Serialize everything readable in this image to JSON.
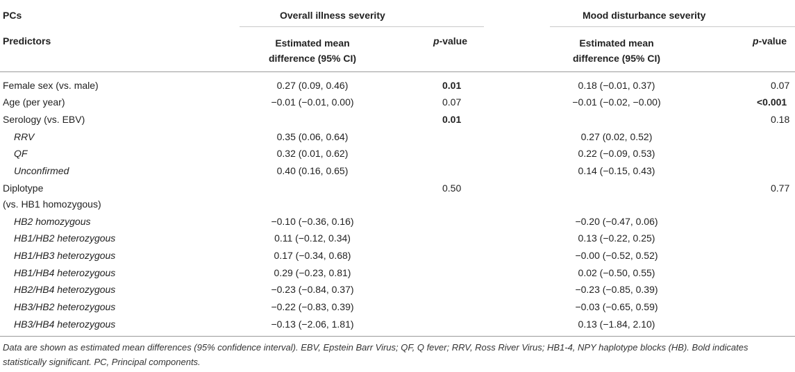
{
  "header": {
    "pcs_label": "PCs",
    "predictors_label": "Predictors",
    "group1": "Overall illness severity",
    "group2": "Mood disturbance severity",
    "est_line1": "Estimated mean",
    "est_line2": "difference (95% CI)",
    "p_italic": "p",
    "p_rest": "-value"
  },
  "rows": [
    {
      "label": "Female sex (vs. male)",
      "est1": "0.27 (0.09, 0.46)",
      "p1": "0.01",
      "est2": "0.18 (−0.01, 0.37)",
      "p2": "0.07"
    },
    {
      "label": "Age (per year)",
      "est1": "−0.01 (−0.01, 0.00)",
      "p1": "0.07",
      "est2": "−0.01 (−0.02, −0.00)",
      "p2": "<0.001"
    },
    {
      "label": "Serology (vs. EBV)",
      "est1": "",
      "p1": "0.01",
      "est2": "",
      "p2": "0.18"
    },
    {
      "label": "RRV",
      "est1": "0.35 (0.06, 0.64)",
      "p1": "",
      "est2": "0.27 (0.02, 0.52)",
      "p2": ""
    },
    {
      "label": "QF",
      "est1": "0.32 (0.01, 0.62)",
      "p1": "",
      "est2": "0.22 (−0.09, 0.53)",
      "p2": ""
    },
    {
      "label": "Unconfirmed",
      "est1": "0.40 (0.16, 0.65)",
      "p1": "",
      "est2": "0.14 (−0.15, 0.43)",
      "p2": ""
    },
    {
      "label": "Diplotype",
      "label2": "(vs. HB1 homozygous)",
      "est1": "",
      "p1": "0.50",
      "est2": "",
      "p2": "0.77"
    },
    {
      "label": "HB2 homozygous",
      "est1": "−0.10 (−0.36, 0.16)",
      "p1": "",
      "est2": "−0.20 (−0.47, 0.06)",
      "p2": ""
    },
    {
      "label": "HB1/HB2 heterozygous",
      "est1": "0.11 (−0.12, 0.34)",
      "p1": "",
      "est2": "0.13 (−0.22, 0.25)",
      "p2": ""
    },
    {
      "label": "HB1/HB3 heterozygous",
      "est1": "0.17 (−0.34, 0.68)",
      "p1": "",
      "est2": "−0.00 (−0.52, 0.52)",
      "p2": ""
    },
    {
      "label": "HB1/HB4 heterozygous",
      "est1": "0.29 (−0.23, 0.81)",
      "p1": "",
      "est2": "0.02 (−0.50, 0.55)",
      "p2": ""
    },
    {
      "label": "HB2/HB4 heterozygous",
      "est1": "−0.23 (−0.84, 0.37)",
      "p1": "",
      "est2": "−0.23 (−0.85, 0.39)",
      "p2": ""
    },
    {
      "label": "HB3/HB2 heterozygous",
      "est1": "−0.22 (−0.83, 0.39)",
      "p1": "",
      "est2": "−0.03 (−0.65, 0.59)",
      "p2": ""
    },
    {
      "label": "HB3/HB4 heterozygous",
      "est1": "−0.13 (−2.06, 1.81)",
      "p1": "",
      "est2": "0.13 (−1.84, 2.10)",
      "p2": ""
    }
  ],
  "footnote": "Data are shown as estimated mean differences (95% confidence interval). EBV, Epstein Barr Virus; QF, Q fever; RRV, Ross River Virus; HB1-4, NPY haplotype blocks (HB). Bold indicates statistically significant. PC, Principal components."
}
